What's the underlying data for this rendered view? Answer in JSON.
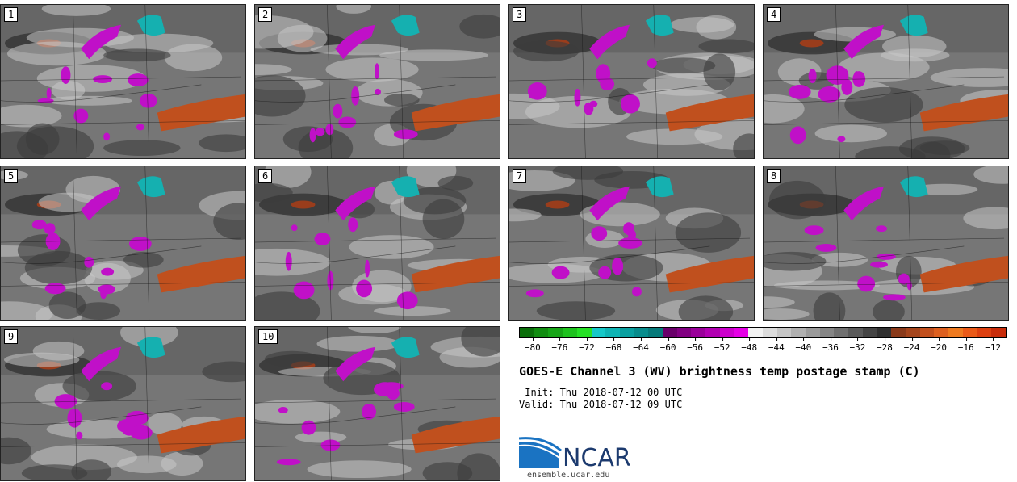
{
  "panels": [
    "1",
    "2",
    "3",
    "4",
    "5",
    "6",
    "7",
    "8",
    "9",
    "10"
  ],
  "colorbar": {
    "colors": [
      "#0a6e0a",
      "#118d11",
      "#17a517",
      "#1ec21e",
      "#26e026",
      "#16c8c8",
      "#0fb4b4",
      "#0aa0a0",
      "#088c8c",
      "#067a7a",
      "#6a006a",
      "#820082",
      "#9a009a",
      "#b200b2",
      "#cc00cc",
      "#e600e6",
      "#f2f2f2",
      "#dcdcdc",
      "#c6c6c6",
      "#b0b0b0",
      "#9a9a9a",
      "#858585",
      "#707070",
      "#5a5a5a",
      "#444444",
      "#303030",
      "#8a3a1a",
      "#a5451c",
      "#c2501e",
      "#dd6020",
      "#ee7a20",
      "#ea5a18",
      "#dd4010",
      "#c82c0a"
    ],
    "ticks": [
      "−80",
      "−76",
      "−72",
      "−68",
      "−64",
      "−60",
      "−56",
      "−52",
      "−48",
      "−44",
      "−40",
      "−36",
      "−32",
      "−28",
      "−24",
      "−20",
      "−16",
      "−12"
    ],
    "min": -82,
    "max": -10
  },
  "title": "GOES-E Channel 3 (WV) brightness temp postage stamp (C)",
  "init_line": " Init: Thu 2018-07-12 00 UTC",
  "valid_line": "Valid: Thu 2018-07-12 09 UTC",
  "logo": {
    "name": "NCAR",
    "url": "ensemble.ucar.edu"
  }
}
